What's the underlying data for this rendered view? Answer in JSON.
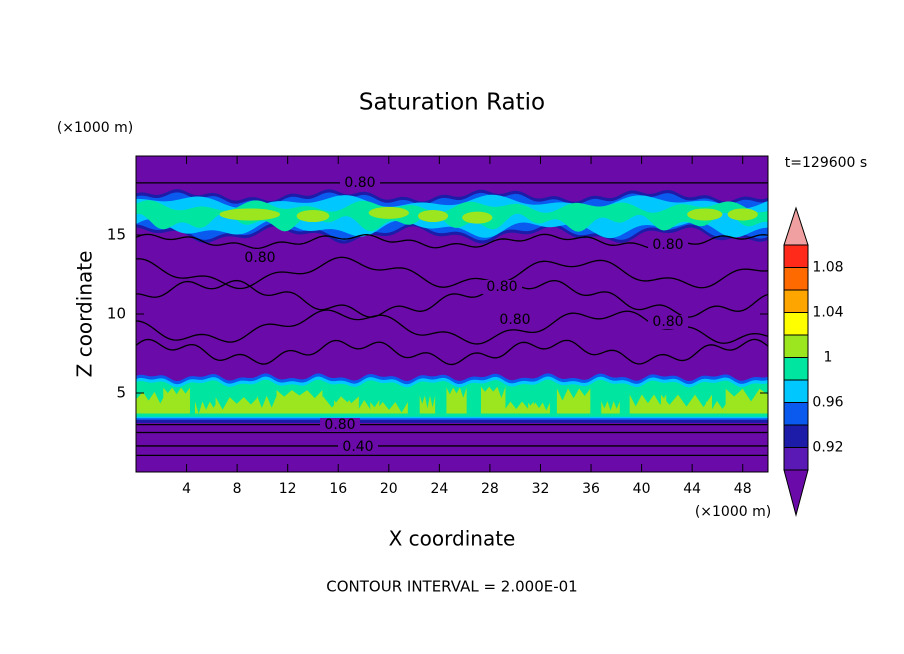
{
  "chart_data": {
    "type": "contour",
    "title": "Saturation Ratio",
    "x_label": "X coordinate",
    "y_label": "Z coordinate",
    "x_unit": "(×1000 m)",
    "y_unit": "(×1000 m)",
    "time_label": "t=129600 s",
    "footer": "CONTOUR INTERVAL = 2.000E-01",
    "xlim": [
      0,
      50
    ],
    "xticks": [
      4,
      8,
      12,
      16,
      20,
      24,
      28,
      32,
      36,
      40,
      44,
      48
    ],
    "ylim": [
      0,
      20
    ],
    "yticks": [
      5,
      10,
      15
    ],
    "contour_labels": [
      {
        "value": 0.8,
        "label": "0.80"
      },
      {
        "value": 0.8,
        "label": "0.80"
      },
      {
        "value": 0.8,
        "label": "0.80"
      },
      {
        "value": 0.8,
        "label": "0.80"
      },
      {
        "value": 0.8,
        "label": "0.80"
      },
      {
        "value": 0.8,
        "label": "0.80"
      },
      {
        "value": 0.8,
        "label": "0.80"
      },
      {
        "value": 0.4,
        "label": "0.40"
      }
    ],
    "colorbar": {
      "levels": [
        0.9,
        0.92,
        0.94,
        0.96,
        0.98,
        1,
        1.02,
        1.04,
        1.06,
        1.08,
        1.1
      ],
      "colors": [
        "#5a18b4",
        "#1c1ca8",
        "#0a5af0",
        "#00c8ff",
        "#00e6a0",
        "#9be61e",
        "#ffff00",
        "#ffa500",
        "#ff6a00",
        "#ff2a1a"
      ],
      "under_color": "#6a0aa8",
      "over_color": "#f0a0a0",
      "ticks": [
        0.92,
        0.96,
        1,
        1.04,
        1.08
      ]
    }
  }
}
